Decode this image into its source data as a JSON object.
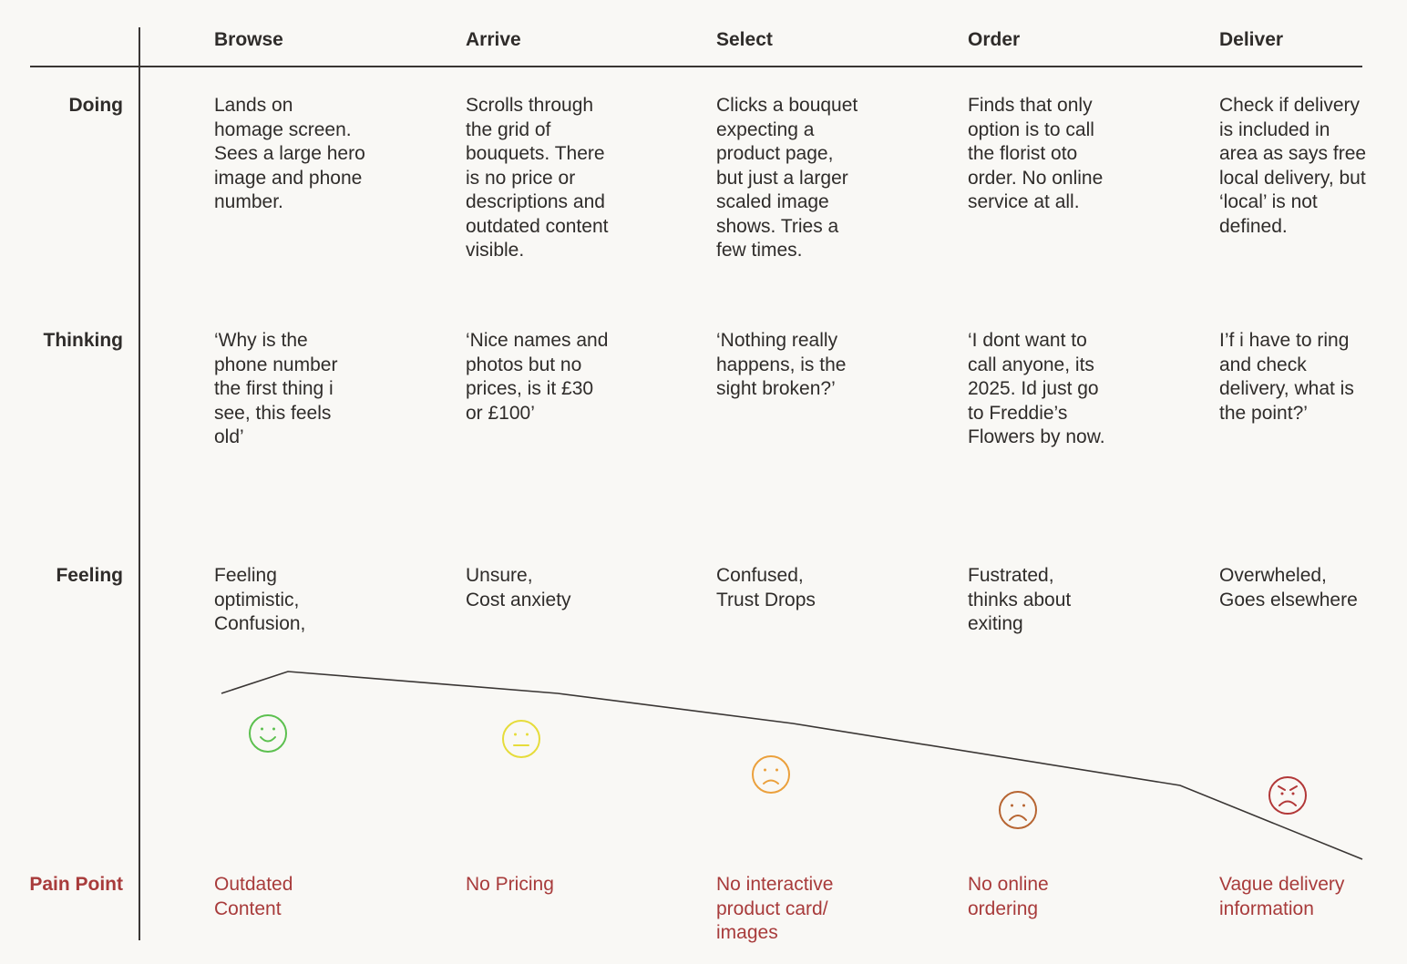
{
  "stages": [
    "Browse",
    "Arrive",
    "Select",
    "Order",
    "Deliver"
  ],
  "rows": [
    {
      "label": "Doing",
      "cells": [
        "Lands on\nhomage screen.\nSees a large hero\nimage and phone\nnumber.",
        "Scrolls through\nthe grid of\nbouquets. There\nis no price or\ndescriptions and\noutdated content\nvisible.",
        "Clicks a bouquet\nexpecting a\nproduct page,\nbut just a larger\nscaled image\nshows. Tries a\nfew times.",
        "Finds that only\noption is to call\nthe florist oto\norder. No online\nservice at all.",
        "Check if delivery\nis included in\narea as says free\nlocal delivery, but\n‘local’ is not\ndefined."
      ]
    },
    {
      "label": "Thinking",
      "cells": [
        "‘Why is the\nphone number\nthe first thing i\nsee, this feels\nold’",
        "‘Nice names and\nphotos but no\nprices, is it £30\nor £100’",
        "‘Nothing really\nhappens, is the\nsight broken?’",
        "‘I dont want to\ncall anyone, its\n2025. Id just go\nto Freddie’s\nFlowers by now.",
        "I’f i have to ring\nand check\ndelivery, what is\nthe point?’"
      ]
    },
    {
      "label": "Feeling",
      "cells": [
        "Feeling\noptimistic,\nConfusion,",
        "Unsure,\nCost anxiety",
        "Confused,\nTrust Drops",
        "Fustrated,\nthinks about\nexiting",
        "Overwheled,\nGoes elsewhere"
      ]
    },
    {
      "label": "Pain Point",
      "cells": [
        "Outdated\nContent",
        "No Pricing",
        "No interactive\nproduct card/\nimages",
        "No online\nordering",
        "Vague delivery\ninformation"
      ]
    }
  ],
  "emotions": [
    {
      "stage": "Browse",
      "icon": "happy-face-icon",
      "color": "#5cc04f",
      "mood": "happy"
    },
    {
      "stage": "Arrive",
      "icon": "neutral-face-icon",
      "color": "#e6dc3a",
      "mood": "neutral"
    },
    {
      "stage": "Select",
      "icon": "sad-face-icon",
      "color": "#eba03c",
      "mood": "sad"
    },
    {
      "stage": "Order",
      "icon": "frown-face-icon",
      "color": "#b76532",
      "mood": "frown"
    },
    {
      "stage": "Deliver",
      "icon": "angry-face-icon",
      "color": "#b23838",
      "mood": "angry"
    }
  ],
  "colors": {
    "text": "#2f2c2a",
    "pain": "#a83b3b",
    "background": "#f9f8f5",
    "line": "#3a3634"
  }
}
